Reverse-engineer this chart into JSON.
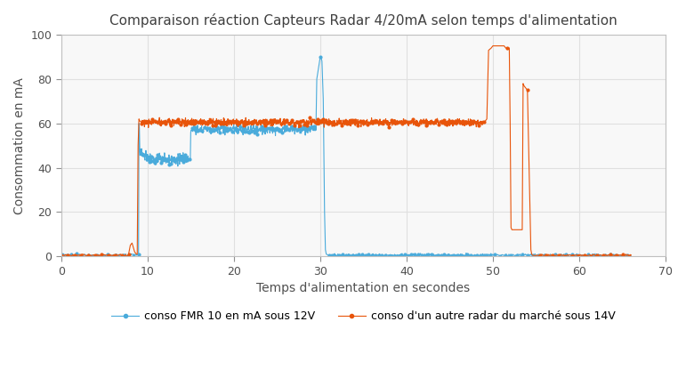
{
  "title": "Comparaison réaction Capteurs Radar 4/20mA selon temps d'alimentation",
  "xlabel": "Temps d'alimentation en secondes",
  "ylabel": "Consommation en mA",
  "xlim": [
    0,
    70
  ],
  "ylim": [
    0,
    100
  ],
  "xticks": [
    0,
    10,
    20,
    30,
    40,
    50,
    60,
    70
  ],
  "yticks": [
    0,
    20,
    40,
    60,
    80,
    100
  ],
  "color_blue": "#4AABDB",
  "color_orange": "#E8540A",
  "legend1": "conso FMR 10 en mA sous 12V",
  "legend2": "conso d'un autre radar du marché sous 14V",
  "bg_color": "#f8f8f8",
  "grid_color": "#e0e0e0"
}
